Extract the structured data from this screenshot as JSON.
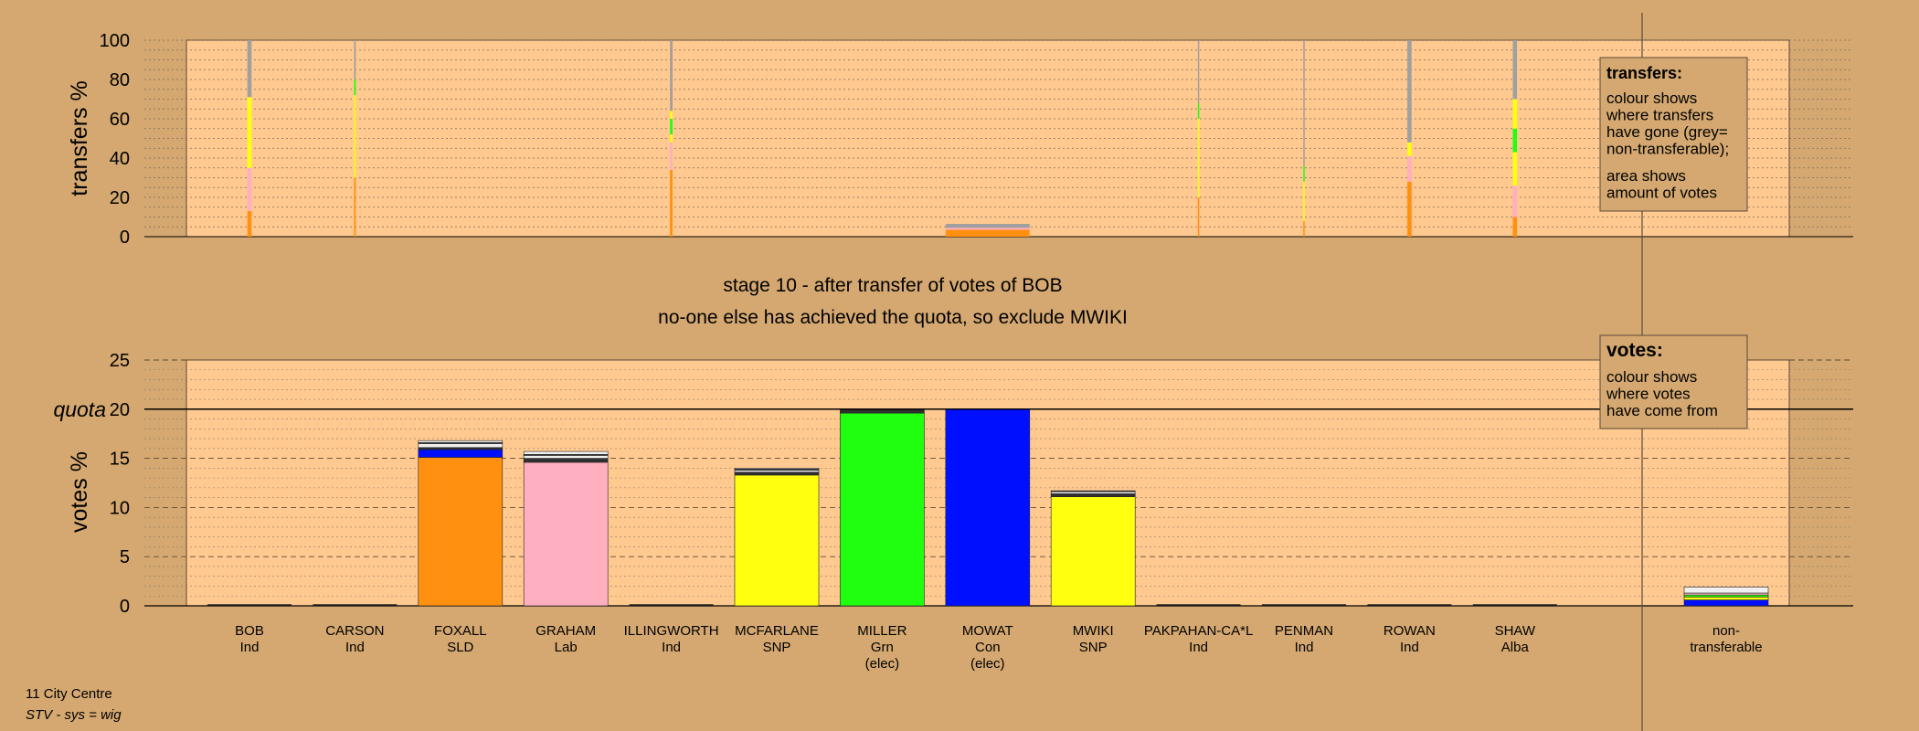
{
  "colors": {
    "page_bg": "#D4A870",
    "plot_bg": "#FFC990",
    "grey": "#A0A0A0",
    "SLD": "#FF9010",
    "Lab": "#FFAFC0",
    "SNP": "#FFFF10",
    "Grn": "#20FF10",
    "Con": "#0010FF",
    "Ind": "#F0F0F0",
    "Alba": "#303030"
  },
  "titles": {
    "stage": "stage 10 - after transfer of votes of BOB",
    "status": "no-one else has achieved the quota, so exclude MWIKI"
  },
  "footer": {
    "ward": "11 City Centre",
    "system": "STV - sys = wig"
  },
  "legends": {
    "transfers": {
      "title": "transfers:",
      "lines": [
        "colour shows",
        "where transfers",
        "have gone (grey=",
        "non-transferable);"
      ],
      "lines2": [
        "area shows",
        "amount of votes"
      ]
    },
    "votes": {
      "title": "votes:",
      "lines": [
        "colour shows",
        "where votes",
        "have come from"
      ]
    }
  },
  "chart_data": [
    {
      "type": "bar",
      "title": "",
      "ylabel": "transfers %",
      "ylim": [
        0,
        100
      ],
      "yticks": [
        0,
        20,
        40,
        60,
        80,
        100
      ],
      "grid": "dotted",
      "categories": [
        "BOB",
        "CARSON",
        "FOXALL",
        "GRAHAM",
        "ILLINGWORTH",
        "MCFARLANE",
        "MILLER",
        "MOWAT",
        "MWIKI",
        "PAKPAHAN-CA*L",
        "PENMAN",
        "ROWAN",
        "SHAW",
        "non-transferable"
      ],
      "bars": [
        {
          "category": "BOB",
          "width_share": 0.05,
          "stack": [
            {
              "party": "SLD",
              "value": 13
            },
            {
              "party": "Lab",
              "value": 22
            },
            {
              "party": "SNP",
              "value": 36
            },
            {
              "party": "grey",
              "value": 29
            }
          ]
        },
        {
          "category": "CARSON",
          "width_share": 0.02,
          "stack": [
            {
              "party": "SLD",
              "value": 30
            },
            {
              "party": "SNP",
              "value": 42
            },
            {
              "party": "Grn",
              "value": 8
            },
            {
              "party": "grey",
              "value": 20
            }
          ]
        },
        {
          "category": "ILLINGWORTH",
          "width_share": 0.03,
          "stack": [
            {
              "party": "SLD",
              "value": 34
            },
            {
              "party": "Lab",
              "value": 14
            },
            {
              "party": "SNP",
              "value": 4
            },
            {
              "party": "Grn",
              "value": 8
            },
            {
              "party": "SNP",
              "value": 4
            },
            {
              "party": "grey",
              "value": 36
            }
          ]
        },
        {
          "category": "MOWAT",
          "width_share": 1.0,
          "stack": [
            {
              "party": "SLD",
              "value": 3.5
            },
            {
              "party": "Lab",
              "value": 1
            },
            {
              "party": "grey",
              "value": 2
            }
          ]
        },
        {
          "category": "PAKPAHAN-CA*L",
          "width_share": 0.01,
          "stack": [
            {
              "party": "SLD",
              "value": 20
            },
            {
              "party": "SNP",
              "value": 40
            },
            {
              "party": "Grn",
              "value": 8
            },
            {
              "party": "grey",
              "value": 32
            }
          ]
        },
        {
          "category": "PENMAN",
          "width_share": 0.01,
          "stack": [
            {
              "party": "SLD",
              "value": 8
            },
            {
              "party": "SNP",
              "value": 20
            },
            {
              "party": "Grn",
              "value": 8
            },
            {
              "party": "grey",
              "value": 64
            }
          ]
        },
        {
          "category": "ROWAN",
          "width_share": 0.05,
          "stack": [
            {
              "party": "SLD",
              "value": 28
            },
            {
              "party": "Lab",
              "value": 13
            },
            {
              "party": "SNP",
              "value": 7
            },
            {
              "party": "grey",
              "value": 52
            }
          ]
        },
        {
          "category": "SHAW",
          "width_share": 0.05,
          "stack": [
            {
              "party": "SLD",
              "value": 10
            },
            {
              "party": "Lab",
              "value": 16
            },
            {
              "party": "SNP",
              "value": 17
            },
            {
              "party": "Grn",
              "value": 12
            },
            {
              "party": "SNP",
              "value": 15
            },
            {
              "party": "grey",
              "value": 30
            }
          ]
        }
      ]
    },
    {
      "type": "bar",
      "title": "",
      "ylabel": "votes %",
      "ylim": [
        0,
        25
      ],
      "yticks": [
        0,
        5,
        10,
        15,
        20,
        25
      ],
      "quota": 20,
      "quota_label": "quota",
      "grid": "dashed",
      "categories": [
        "BOB",
        "CARSON",
        "FOXALL",
        "GRAHAM",
        "ILLINGWORTH",
        "MCFARLANE",
        "MILLER",
        "MOWAT",
        "MWIKI",
        "PAKPAHAN-CA*L",
        "PENMAN",
        "ROWAN",
        "SHAW",
        "non-transferable"
      ],
      "labels": [
        {
          "name": "BOB",
          "party": "Ind",
          "note": ""
        },
        {
          "name": "CARSON",
          "party": "Ind",
          "note": ""
        },
        {
          "name": "FOXALL",
          "party": "SLD",
          "note": ""
        },
        {
          "name": "GRAHAM",
          "party": "Lab",
          "note": ""
        },
        {
          "name": "ILLINGWORTH",
          "party": "Ind",
          "note": ""
        },
        {
          "name": "MCFARLANE",
          "party": "SNP",
          "note": ""
        },
        {
          "name": "MILLER",
          "party": "Grn",
          "note": "(elec)"
        },
        {
          "name": "MOWAT",
          "party": "Con",
          "note": "(elec)"
        },
        {
          "name": "MWIKI",
          "party": "SNP",
          "note": ""
        },
        {
          "name": "PAKPAHAN-CA*L",
          "party": "Ind",
          "note": ""
        },
        {
          "name": "PENMAN",
          "party": "Ind",
          "note": ""
        },
        {
          "name": "ROWAN",
          "party": "Ind",
          "note": ""
        },
        {
          "name": "SHAW",
          "party": "Alba",
          "note": ""
        },
        {
          "name": "non-",
          "party": "transferable",
          "note": ""
        }
      ],
      "bars": [
        {
          "category": "FOXALL",
          "stack": [
            {
              "party": "SLD",
              "value": 15.1
            },
            {
              "party": "Con",
              "value": 0.8
            },
            {
              "party": "Alba",
              "value": 0.2
            },
            {
              "party": "Ind",
              "value": 0.4
            },
            {
              "party": "Alba",
              "value": 0.1
            },
            {
              "party": "Ind",
              "value": 0.2
            }
          ]
        },
        {
          "category": "GRAHAM",
          "stack": [
            {
              "party": "Lab",
              "value": 14.6
            },
            {
              "party": "Alba",
              "value": 0.4
            },
            {
              "party": "Ind",
              "value": 0.3
            },
            {
              "party": "Alba",
              "value": 0.1
            },
            {
              "party": "Ind",
              "value": 0.3
            }
          ]
        },
        {
          "category": "MCFARLANE",
          "stack": [
            {
              "party": "SNP",
              "value": 13.3
            },
            {
              "party": "Alba",
              "value": 0.3
            },
            {
              "party": "Ind",
              "value": 0.2
            },
            {
              "party": "Alba",
              "value": 0.1
            },
            {
              "party": "Ind",
              "value": 0.1
            }
          ]
        },
        {
          "category": "MILLER",
          "stack": [
            {
              "party": "Grn",
              "value": 19.6
            },
            {
              "party": "Alba",
              "value": 0.3
            }
          ]
        },
        {
          "category": "MOWAT",
          "stack": [
            {
              "party": "Con",
              "value": 20.0
            }
          ]
        },
        {
          "category": "MWIKI",
          "stack": [
            {
              "party": "SNP",
              "value": 11.1
            },
            {
              "party": "Alba",
              "value": 0.3
            },
            {
              "party": "Ind",
              "value": 0.2
            },
            {
              "party": "Alba",
              "value": 0.1
            }
          ]
        },
        {
          "category": "non-transferable",
          "stack": [
            {
              "party": "Con",
              "value": 0.6
            },
            {
              "party": "SNP",
              "value": 0.3
            },
            {
              "party": "Grn",
              "value": 0.2
            },
            {
              "party": "Lab",
              "value": 0.2
            },
            {
              "party": "Ind",
              "value": 0.6
            }
          ]
        }
      ]
    }
  ]
}
